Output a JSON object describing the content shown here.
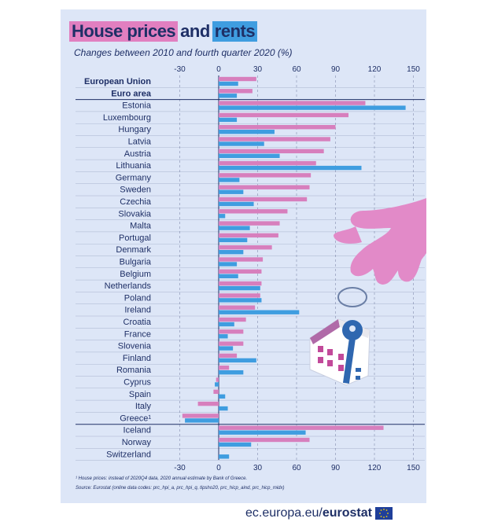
{
  "title": {
    "part1": "House prices",
    "part2": "and",
    "part3": "rents"
  },
  "subtitle": "Changes between 2010 and fourth quarter 2020 (%)",
  "footnote": "¹ House prices: instead of 2020Q4 data, 2020 annual estimate by Bank of Greece.",
  "source": "Source: Eurostat (online data codes: prc_hpi_a, prc_hpi_q, tipsho20, prc_hicp_aind, prc_hicp_midx)",
  "footer": {
    "url": "ec.europa.eu/",
    "brand": "eurostat"
  },
  "colors": {
    "house_prices": "#d77fbd",
    "rents": "#3f9de0",
    "panel": "#dde6f7",
    "text": "#1e2f66"
  },
  "icons": [
    "hand-illustration",
    "house-illustration",
    "key-illustration",
    "eu-flag-icon"
  ],
  "chart_data": {
    "type": "bar",
    "orientation": "horizontal",
    "categories": [
      "European Union",
      "Euro area",
      "Estonia",
      "Luxembourg",
      "Hungary",
      "Latvia",
      "Austria",
      "Lithuania",
      "Germany",
      "Sweden",
      "Czechia",
      "Slovakia",
      "Malta",
      "Portugal",
      "Denmark",
      "Bulgaria",
      "Belgium",
      "Netherlands",
      "Poland",
      "Ireland",
      "Croatia",
      "France",
      "Slovenia",
      "Finland",
      "Romania",
      "Cyprus",
      "Spain",
      "Italy",
      "Greece¹",
      "Iceland",
      "Norway",
      "Switzerland"
    ],
    "bold_categories": [
      "European Union",
      "Euro area"
    ],
    "series": [
      {
        "values": [
          29,
          26,
          113,
          100,
          90,
          86,
          81,
          75,
          71,
          70,
          68,
          53,
          47,
          46,
          41,
          34,
          33,
          33,
          32,
          28,
          21,
          19,
          19,
          14,
          8,
          -2,
          -4,
          -16,
          -28,
          127,
          70,
          null
        ]
      },
      {
        "values": [
          15,
          14,
          144,
          14,
          43,
          35,
          47,
          110,
          16,
          19,
          27,
          5,
          24,
          22,
          19,
          14,
          15,
          32,
          33,
          62,
          12,
          7,
          11,
          29,
          19,
          -3,
          5,
          7,
          -26,
          67,
          25,
          8
        ]
      }
    ],
    "xlim": [
      -30,
      150
    ],
    "ticks": [
      -30,
      0,
      30,
      60,
      90,
      120,
      150
    ],
    "grid": "vertical dashed",
    "legend": "title color-coded"
  }
}
